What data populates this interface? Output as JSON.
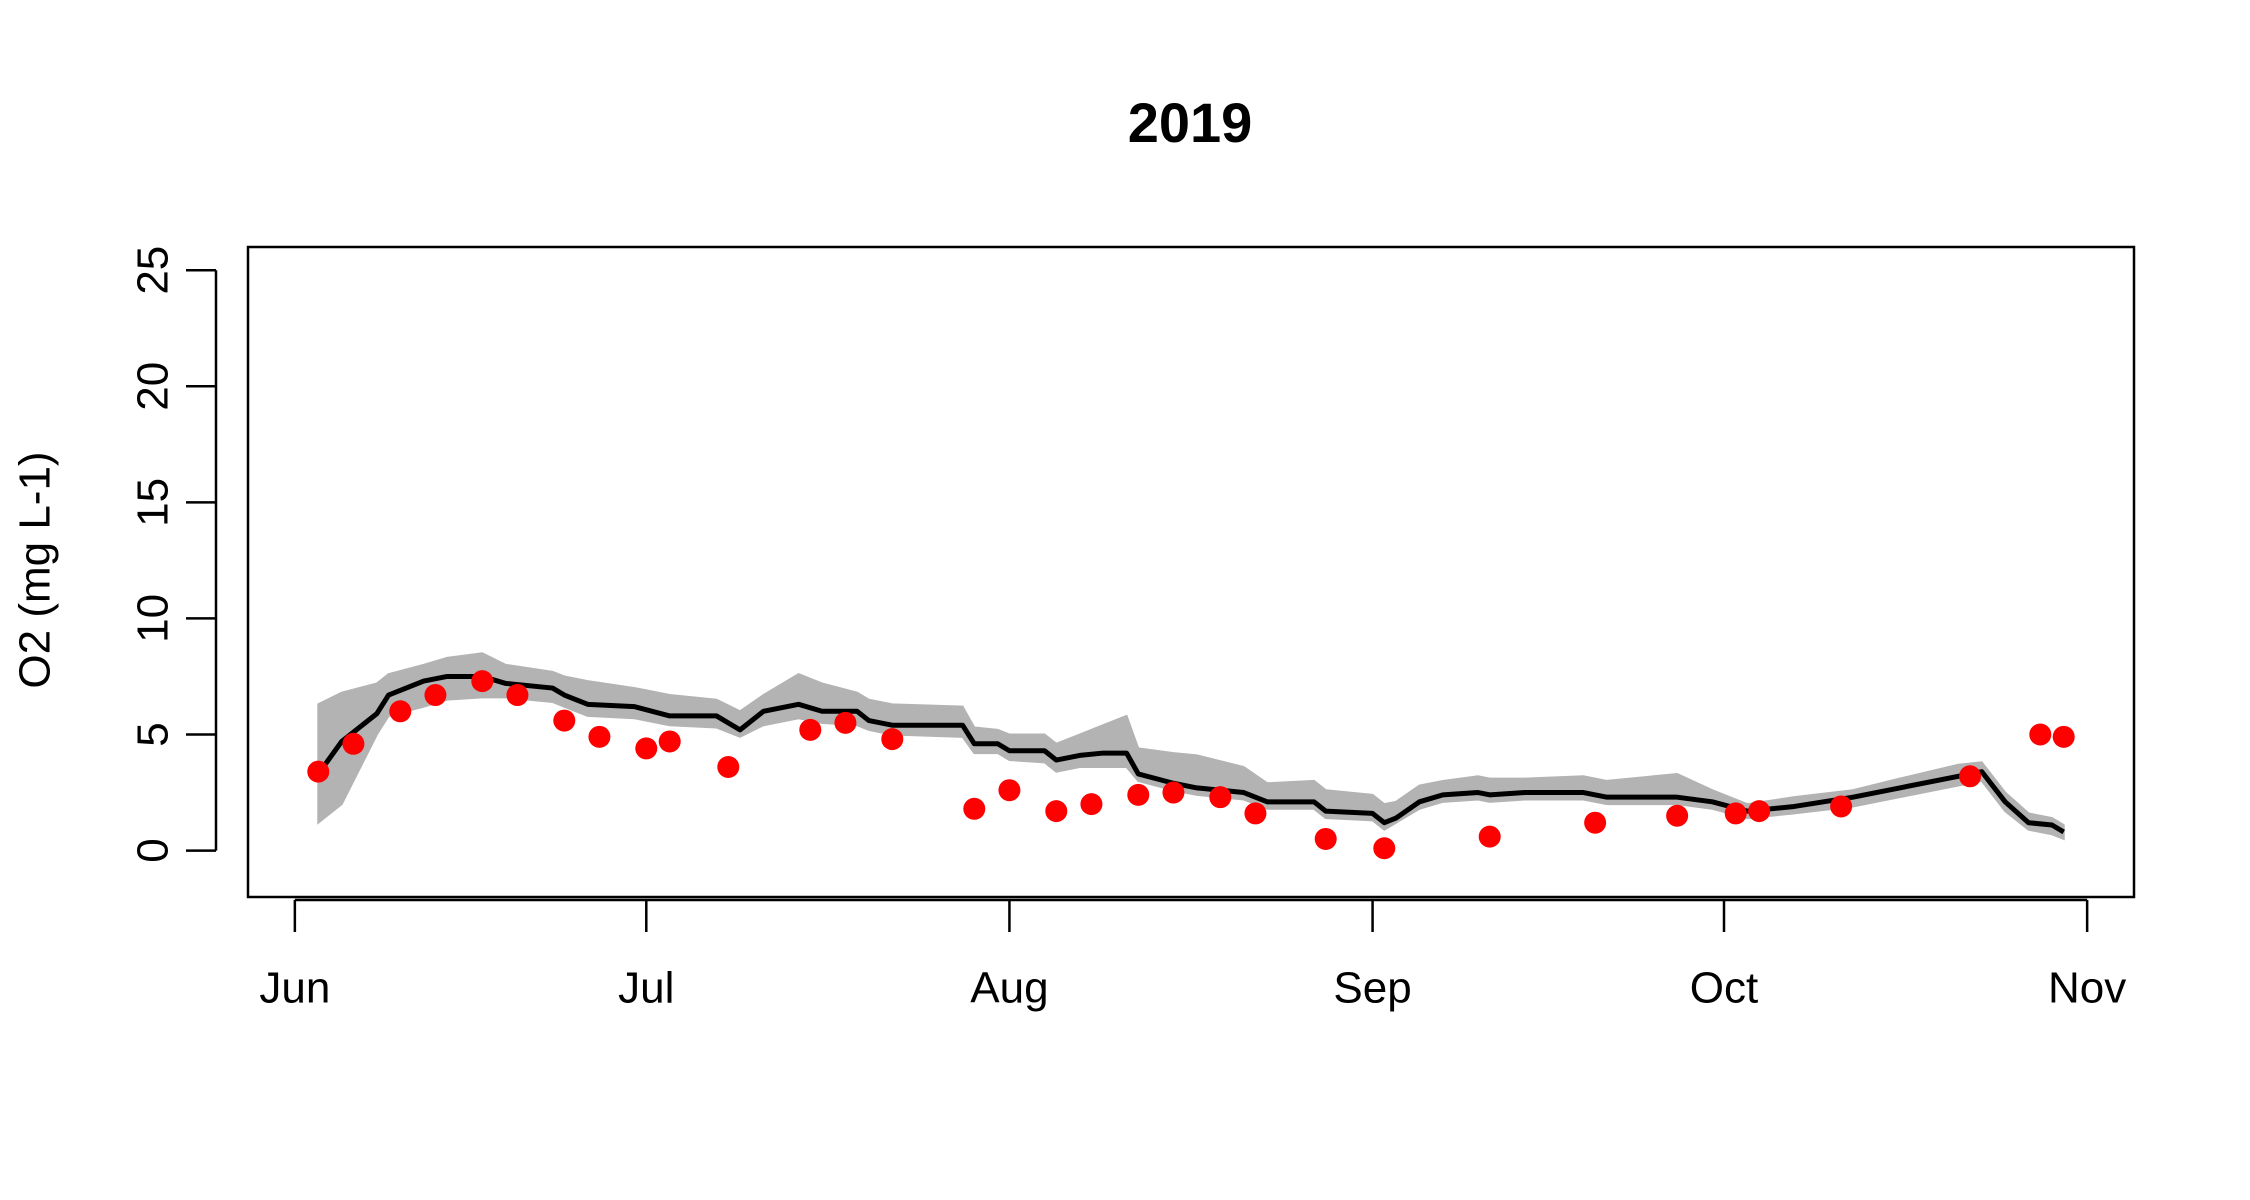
{
  "chart_data": {
    "type": "line",
    "title": "2019",
    "ylabel": "O2 (mg L-1)",
    "xlim": [
      -4,
      157
    ],
    "xticks": [
      {
        "value": 0,
        "label": "Jun"
      },
      {
        "value": 30,
        "label": "Jul"
      },
      {
        "value": 61,
        "label": "Aug"
      },
      {
        "value": 92,
        "label": "Sep"
      },
      {
        "value": 122,
        "label": "Oct"
      },
      {
        "value": 153,
        "label": "Nov"
      }
    ],
    "ylim": [
      -2,
      26
    ],
    "yticks": [
      0,
      5,
      10,
      15,
      20,
      25
    ],
    "x": [
      2,
      4,
      7,
      8,
      11,
      13,
      16,
      18,
      22,
      23,
      25,
      29,
      32,
      36,
      38,
      40,
      43,
      45,
      48,
      49,
      51,
      57,
      58,
      60,
      61,
      64,
      65,
      67,
      69,
      71,
      72,
      75,
      77,
      81,
      83,
      87,
      88,
      92,
      93,
      94,
      96,
      98,
      101,
      102,
      105,
      110,
      112,
      118,
      121,
      124,
      128,
      133,
      137,
      142,
      144,
      146,
      148,
      150,
      151
    ],
    "band": {
      "color": "#b3b3b3",
      "lower": [
        1.2,
        2.0,
        5.0,
        5.8,
        6.2,
        6.5,
        6.6,
        6.6,
        6.4,
        6.2,
        5.8,
        5.7,
        5.4,
        5.3,
        4.9,
        5.4,
        5.7,
        5.5,
        5.4,
        5.2,
        5.0,
        4.9,
        4.2,
        4.2,
        3.9,
        3.8,
        3.4,
        3.6,
        3.6,
        3.6,
        3.0,
        2.6,
        2.4,
        2.2,
        1.8,
        1.8,
        1.4,
        1.3,
        0.9,
        1.2,
        1.8,
        2.1,
        2.2,
        2.1,
        2.2,
        2.2,
        2.0,
        2.0,
        1.8,
        1.4,
        1.6,
        1.9,
        2.3,
        2.8,
        3.0,
        1.7,
        0.9,
        0.7,
        0.5
      ],
      "upper": [
        6.3,
        6.8,
        7.2,
        7.6,
        8.0,
        8.3,
        8.5,
        8.0,
        7.7,
        7.5,
        7.3,
        7.0,
        6.7,
        6.5,
        6.0,
        6.7,
        7.6,
        7.2,
        6.8,
        6.5,
        6.3,
        6.2,
        5.3,
        5.2,
        5.0,
        5.0,
        4.6,
        5.0,
        5.4,
        5.8,
        4.4,
        4.2,
        4.1,
        3.6,
        2.9,
        3.0,
        2.6,
        2.4,
        2.0,
        2.1,
        2.8,
        3.0,
        3.2,
        3.1,
        3.1,
        3.2,
        3.0,
        3.3,
        2.6,
        2.0,
        2.3,
        2.6,
        3.1,
        3.7,
        3.8,
        2.5,
        1.6,
        1.4,
        1.1
      ]
    },
    "series": [
      {
        "color": "#000000",
        "values": [
          3.3,
          4.7,
          5.9,
          6.7,
          7.3,
          7.5,
          7.5,
          7.2,
          7.0,
          6.7,
          6.3,
          6.2,
          5.8,
          5.8,
          5.2,
          6.0,
          6.3,
          6.0,
          6.0,
          5.6,
          5.4,
          5.4,
          4.6,
          4.6,
          4.3,
          4.3,
          3.9,
          4.1,
          4.2,
          4.2,
          3.3,
          2.9,
          2.7,
          2.5,
          2.1,
          2.1,
          1.7,
          1.6,
          1.2,
          1.4,
          2.1,
          2.4,
          2.5,
          2.4,
          2.5,
          2.5,
          2.3,
          2.3,
          2.1,
          1.7,
          1.9,
          2.3,
          2.7,
          3.2,
          3.4,
          2.1,
          1.2,
          1.1,
          0.8
        ]
      }
    ],
    "points": {
      "color": "#ff0000",
      "x": [
        2,
        5,
        9,
        12,
        16,
        19,
        23,
        26,
        30,
        32,
        37,
        44,
        47,
        51,
        58,
        61,
        65,
        68,
        72,
        75,
        79,
        82,
        88,
        93,
        102,
        111,
        118,
        123,
        125,
        132,
        143,
        149,
        151
      ],
      "values": [
        3.4,
        4.6,
        6.0,
        6.7,
        7.3,
        6.7,
        5.6,
        4.9,
        4.4,
        4.7,
        3.6,
        5.2,
        5.5,
        4.8,
        1.8,
        2.6,
        1.7,
        2.0,
        2.4,
        2.5,
        2.3,
        1.6,
        0.5,
        0.1,
        0.6,
        1.2,
        1.5,
        1.6,
        1.7,
        1.9,
        3.2,
        5.0,
        4.9
      ]
    }
  }
}
